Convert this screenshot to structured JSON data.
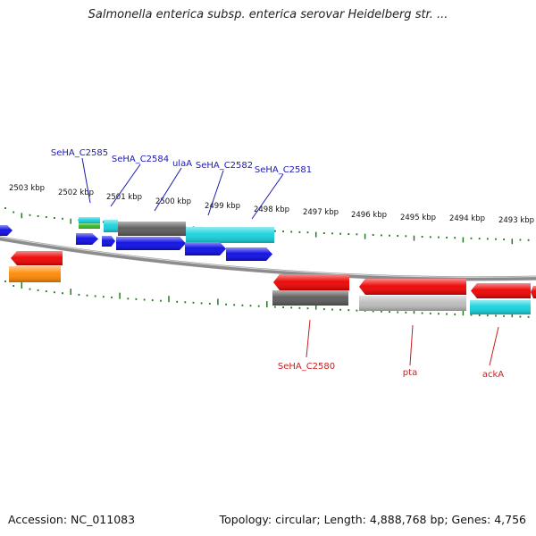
{
  "title": "Salmonella enterica subsp. enterica serovar Heidelberg str. ...",
  "kbp_labels": [
    "2503 kbp",
    "2502 kbp",
    "2501 kbp",
    "2500 kbp",
    "2499 kbp",
    "2498 kbp",
    "2497 kbp",
    "2496 kbp",
    "2495 kbp",
    "2494 kbp",
    "2493 kbp"
  ],
  "gene_labels_top": [
    "SeHA_C2585",
    "SeHA_C2584",
    "ulaA",
    "SeHA_C2582",
    "SeHA_C2581"
  ],
  "gene_labels_bottom": [
    "SeHA_C2580",
    "pta",
    "ackA"
  ],
  "footer": {
    "accession": "Accession: NC_011083",
    "topology": "Topology: circular; Length: 4,888,768 bp; Genes: 4,756"
  },
  "colors": {
    "blue": "#0a0ae6",
    "red": "#ee0000",
    "cyan": "#14d2dc",
    "green": "#33bb22",
    "dark_gray": "#5a5a5a",
    "light_gray": "#bcbcbc",
    "orange": "#ff8800",
    "backbone": "#8c8c8c",
    "tick": "#1e7e1e",
    "label_blue": "#1a1ab4",
    "label_red": "#c81e1e"
  }
}
